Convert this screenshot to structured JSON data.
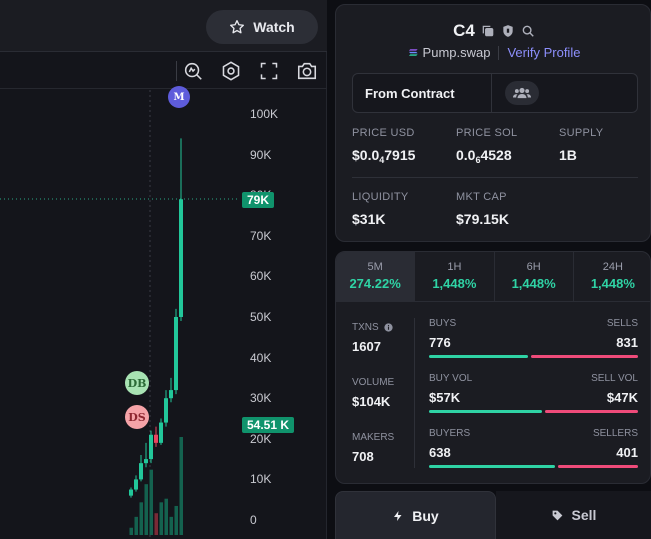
{
  "chart": {
    "watch_label": "Watch",
    "toolbar_icons": [
      "indicator-search-icon",
      "settings-hex-icon",
      "fullscreen-icon",
      "camera-icon"
    ],
    "price_axis": [
      "100K",
      "90K",
      "80K",
      "70K",
      "60K",
      "50K",
      "40K",
      "30K",
      "20K",
      "10K",
      "0"
    ],
    "current_price_tag": "79K",
    "crosshair_tag": "54.51 K",
    "markers": {
      "m": "M",
      "db": "DB",
      "ds": "DS"
    }
  },
  "chart_data": {
    "type": "candlestick",
    "ylim": [
      0,
      100000
    ],
    "y_ticks": [
      0,
      10000,
      20000,
      30000,
      40000,
      50000,
      60000,
      70000,
      80000,
      90000,
      100000
    ],
    "candles": [
      {
        "o": 6000,
        "h": 8000,
        "l": 5500,
        "c": 7500
      },
      {
        "o": 7500,
        "h": 11000,
        "l": 7000,
        "c": 10000
      },
      {
        "o": 10000,
        "h": 16000,
        "l": 9500,
        "c": 14000
      },
      {
        "o": 14000,
        "h": 19000,
        "l": 13000,
        "c": 15000
      },
      {
        "o": 15000,
        "h": 22000,
        "l": 14000,
        "c": 21000
      },
      {
        "o": 21000,
        "h": 23000,
        "l": 18000,
        "c": 19000
      },
      {
        "o": 19000,
        "h": 25000,
        "l": 18500,
        "c": 24000
      },
      {
        "o": 24000,
        "h": 32000,
        "l": 23000,
        "c": 30000
      },
      {
        "o": 30000,
        "h": 35000,
        "l": 29000,
        "c": 32000
      },
      {
        "o": 32000,
        "h": 52000,
        "l": 31000,
        "c": 50000
      },
      {
        "o": 50000,
        "h": 94000,
        "l": 49000,
        "c": 79000
      }
    ],
    "volumes": [
      2,
      5,
      9,
      14,
      18,
      6,
      9,
      10,
      5,
      8,
      27
    ]
  },
  "token": {
    "symbol": "C4",
    "dex": "Pump.swap",
    "verify": "Verify Profile",
    "contract_label": "From Contract"
  },
  "stats": {
    "price_usd_label": "PRICE USD",
    "price_usd_a": "$0.0",
    "price_usd_sub": "4",
    "price_usd_b": "7915",
    "price_sol_label": "PRICE SOL",
    "price_sol_a": "0.0",
    "price_sol_sub": "6",
    "price_sol_b": "4528",
    "supply_label": "SUPPLY",
    "supply": "1B",
    "liquidity_label": "LIQUIDITY",
    "liquidity": "$31K",
    "mktcap_label": "MKT CAP",
    "mktcap": "$79.15K"
  },
  "timeframes": [
    {
      "label": "5M",
      "pct": "274.22%"
    },
    {
      "label": "1H",
      "pct": "1,448%"
    },
    {
      "label": "6H",
      "pct": "1,448%"
    },
    {
      "label": "24H",
      "pct": "1,448%"
    }
  ],
  "txns": {
    "txns_label": "TXNS",
    "txns": "1607",
    "volume_label": "VOLUME",
    "volume": "$104K",
    "makers_label": "MAKERS",
    "makers": "708",
    "buys_label": "BUYS",
    "buys": "776",
    "buys_frac": 0.483,
    "sells_label": "SELLS",
    "sells": "831",
    "buyvol_label": "BUY VOL",
    "buyvol": "$57K",
    "buyvol_frac": 0.548,
    "sellvol_label": "SELL VOL",
    "sellvol": "$47K",
    "buyers_label": "BUYERS",
    "buyers": "638",
    "buyers_frac": 0.614,
    "sellers_label": "SELLERS",
    "sellers": "401"
  },
  "trade": {
    "buy": "Buy",
    "sell": "Sell"
  }
}
